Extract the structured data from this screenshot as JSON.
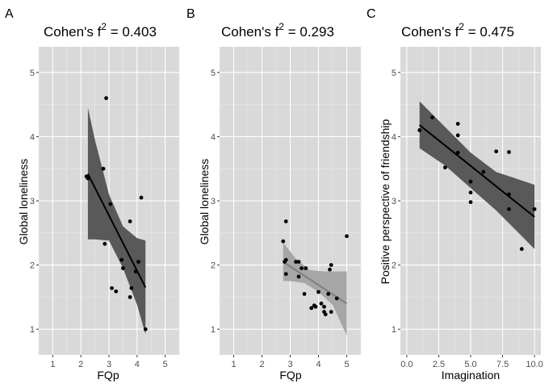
{
  "chart_data": [
    {
      "panel": "A",
      "type": "scatter",
      "title_prefix": "Cohen's  f",
      "title_sup": "2",
      "title_suffix": " = 0.403",
      "xlabel": "FQp",
      "ylabel": "Global loneliness",
      "xlim": [
        0.5,
        5.5
      ],
      "ylim": [
        0.6,
        5.4
      ],
      "xticks": [
        1,
        2,
        3,
        4,
        5
      ],
      "yticks": [
        1,
        2,
        3,
        4,
        5
      ],
      "band_color": "#595959",
      "line_color": "#000000",
      "regression": {
        "x0": 2.25,
        "y0": 3.42,
        "x1": 4.3,
        "y1": 1.65
      },
      "ci_band": [
        [
          2.25,
          4.45
        ],
        [
          2.5,
          3.95
        ],
        [
          3.0,
          3.1
        ],
        [
          3.5,
          2.6
        ],
        [
          4.0,
          2.42
        ],
        [
          4.3,
          2.38
        ],
        [
          4.3,
          0.92
        ],
        [
          4.0,
          1.38
        ],
        [
          3.5,
          1.95
        ],
        [
          3.0,
          2.38
        ],
        [
          2.5,
          2.4
        ],
        [
          2.25,
          2.4
        ]
      ],
      "points": [
        {
          "x": 2.2,
          "y": 3.38
        },
        {
          "x": 2.25,
          "y": 3.35
        },
        {
          "x": 2.8,
          "y": 3.5
        },
        {
          "x": 2.9,
          "y": 4.6
        },
        {
          "x": 2.85,
          "y": 2.33
        },
        {
          "x": 3.05,
          "y": 2.95
        },
        {
          "x": 3.1,
          "y": 1.64
        },
        {
          "x": 3.25,
          "y": 1.59
        },
        {
          "x": 3.45,
          "y": 2.08
        },
        {
          "x": 3.5,
          "y": 1.95
        },
        {
          "x": 3.75,
          "y": 2.68
        },
        {
          "x": 3.8,
          "y": 1.64
        },
        {
          "x": 3.75,
          "y": 1.5
        },
        {
          "x": 3.95,
          "y": 1.9
        },
        {
          "x": 4.05,
          "y": 2.05
        },
        {
          "x": 4.15,
          "y": 3.05
        },
        {
          "x": 4.3,
          "y": 1.0
        }
      ]
    },
    {
      "panel": "B",
      "type": "scatter",
      "title_prefix": "Cohen's  f",
      "title_sup": "2",
      "title_suffix": " = 0.293",
      "xlabel": "FQp",
      "ylabel": "Global loneliness",
      "xlim": [
        0.5,
        5.5
      ],
      "ylim": [
        0.6,
        5.4
      ],
      "xticks": [
        1,
        2,
        3,
        4,
        5
      ],
      "yticks": [
        1,
        2,
        3,
        4,
        5
      ],
      "band_color": "#a6a6a6",
      "line_color": "#7f7f7f",
      "regression": {
        "x0": 2.75,
        "y0": 2.05,
        "x1": 5.0,
        "y1": 1.4
      },
      "ci_band": [
        [
          2.75,
          2.35
        ],
        [
          3.2,
          2.1
        ],
        [
          3.7,
          1.92
        ],
        [
          4.2,
          1.9
        ],
        [
          5.0,
          1.9
        ],
        [
          5.0,
          0.9
        ],
        [
          4.5,
          1.38
        ],
        [
          4.0,
          1.58
        ],
        [
          3.5,
          1.72
        ],
        [
          3.0,
          1.75
        ],
        [
          2.75,
          1.75
        ]
      ],
      "points": [
        {
          "x": 2.75,
          "y": 2.37
        },
        {
          "x": 2.85,
          "y": 2.68
        },
        {
          "x": 2.85,
          "y": 2.08
        },
        {
          "x": 2.8,
          "y": 2.05
        },
        {
          "x": 2.85,
          "y": 1.86
        },
        {
          "x": 3.2,
          "y": 2.05
        },
        {
          "x": 3.3,
          "y": 2.05
        },
        {
          "x": 3.3,
          "y": 1.82
        },
        {
          "x": 3.4,
          "y": 1.95
        },
        {
          "x": 3.55,
          "y": 1.95
        },
        {
          "x": 3.5,
          "y": 1.55
        },
        {
          "x": 3.75,
          "y": 1.33
        },
        {
          "x": 3.85,
          "y": 1.37
        },
        {
          "x": 3.9,
          "y": 1.35
        },
        {
          "x": 4.0,
          "y": 1.58
        },
        {
          "x": 4.1,
          "y": 1.4
        },
        {
          "x": 4.2,
          "y": 1.35
        },
        {
          "x": 4.2,
          "y": 1.27
        },
        {
          "x": 4.25,
          "y": 1.23
        },
        {
          "x": 4.35,
          "y": 1.55
        },
        {
          "x": 4.4,
          "y": 1.93
        },
        {
          "x": 4.45,
          "y": 2.0
        },
        {
          "x": 4.45,
          "y": 1.27
        },
        {
          "x": 4.65,
          "y": 1.48
        },
        {
          "x": 5.0,
          "y": 2.45
        }
      ]
    },
    {
      "panel": "C",
      "type": "scatter",
      "title_prefix": "Cohen's  f",
      "title_sup": "2",
      "title_suffix": " = 0.475",
      "xlabel": "Imagination",
      "ylabel": "Positive perspective of friendship",
      "xlim": [
        -0.5,
        10.5
      ],
      "ylim": [
        0.6,
        5.4
      ],
      "xticks": [
        0,
        2.5,
        5,
        7.5,
        10
      ],
      "xtick_labels": [
        "0.0",
        "2.5",
        "5.0",
        "7.5",
        "10.0"
      ],
      "yticks": [
        1,
        2,
        3,
        4,
        5
      ],
      "band_color": "#595959",
      "line_color": "#000000",
      "regression": {
        "x0": 1.0,
        "y0": 4.18,
        "x1": 10.0,
        "y1": 2.75
      },
      "ci_band": [
        [
          1.0,
          4.55
        ],
        [
          3.0,
          4.15
        ],
        [
          5.0,
          3.75
        ],
        [
          7.0,
          3.45
        ],
        [
          8.5,
          3.35
        ],
        [
          10.0,
          3.25
        ],
        [
          10.0,
          2.25
        ],
        [
          8.5,
          2.55
        ],
        [
          7.0,
          2.85
        ],
        [
          5.0,
          3.2
        ],
        [
          3.0,
          3.55
        ],
        [
          1.0,
          3.82
        ]
      ],
      "points": [
        {
          "x": 1.0,
          "y": 4.1
        },
        {
          "x": 2.0,
          "y": 4.3
        },
        {
          "x": 3.0,
          "y": 3.52
        },
        {
          "x": 4.0,
          "y": 4.2
        },
        {
          "x": 4.0,
          "y": 4.02
        },
        {
          "x": 4.0,
          "y": 3.75
        },
        {
          "x": 5.0,
          "y": 3.3
        },
        {
          "x": 5.0,
          "y": 3.13
        },
        {
          "x": 5.0,
          "y": 2.98
        },
        {
          "x": 6.0,
          "y": 3.45
        },
        {
          "x": 7.0,
          "y": 3.77
        },
        {
          "x": 8.0,
          "y": 3.76
        },
        {
          "x": 8.0,
          "y": 3.1
        },
        {
          "x": 8.0,
          "y": 2.87
        },
        {
          "x": 9.0,
          "y": 2.25
        },
        {
          "x": 10.0,
          "y": 2.87
        }
      ]
    }
  ]
}
